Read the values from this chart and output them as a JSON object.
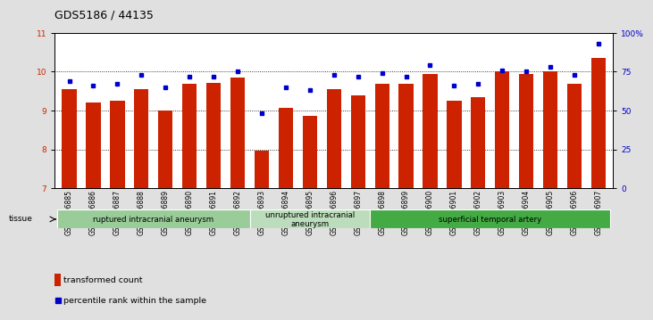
{
  "title": "GDS5186 / 44135",
  "samples": [
    "GSM1306885",
    "GSM1306886",
    "GSM1306887",
    "GSM1306888",
    "GSM1306889",
    "GSM1306890",
    "GSM1306891",
    "GSM1306892",
    "GSM1306893",
    "GSM1306894",
    "GSM1306895",
    "GSM1306896",
    "GSM1306897",
    "GSM1306898",
    "GSM1306899",
    "GSM1306900",
    "GSM1306901",
    "GSM1306902",
    "GSM1306903",
    "GSM1306904",
    "GSM1306905",
    "GSM1306906",
    "GSM1306907"
  ],
  "bar_values": [
    9.55,
    9.2,
    9.25,
    9.55,
    9.0,
    9.68,
    9.7,
    9.85,
    7.97,
    9.07,
    8.87,
    9.55,
    9.4,
    9.68,
    9.68,
    9.95,
    9.25,
    9.35,
    10.0,
    9.95,
    10.0,
    9.68,
    10.35
  ],
  "percentile_values": [
    69,
    66,
    67,
    73,
    65,
    72,
    72,
    75,
    48,
    65,
    63,
    73,
    72,
    74,
    72,
    79,
    66,
    67,
    76,
    75,
    78,
    73,
    93
  ],
  "ylim_left": [
    7,
    11
  ],
  "ylim_right": [
    0,
    100
  ],
  "yticks_left": [
    7,
    8,
    9,
    10,
    11
  ],
  "yticks_right": [
    0,
    25,
    50,
    75,
    100
  ],
  "ytick_labels_right": [
    "0",
    "25",
    "50",
    "75",
    "100%"
  ],
  "bar_color": "#cc2200",
  "dot_color": "#0000cc",
  "bg_color": "#e0e0e0",
  "plot_bg_color": "#ffffff",
  "tissue_groups": [
    {
      "label": "ruptured intracranial aneurysm",
      "start": 0,
      "end": 8,
      "color": "#99cc99"
    },
    {
      "label": "unruptured intracranial\naneurysm",
      "start": 8,
      "end": 13,
      "color": "#bbddbb"
    },
    {
      "label": "superficial temporal artery",
      "start": 13,
      "end": 23,
      "color": "#44aa44"
    }
  ],
  "tissue_label": "tissue",
  "legend_bar_label": "transformed count",
  "legend_dot_label": "percentile rank within the sample",
  "title_fontsize": 9,
  "tick_fontsize": 6.5,
  "xtick_fontsize": 5.5
}
